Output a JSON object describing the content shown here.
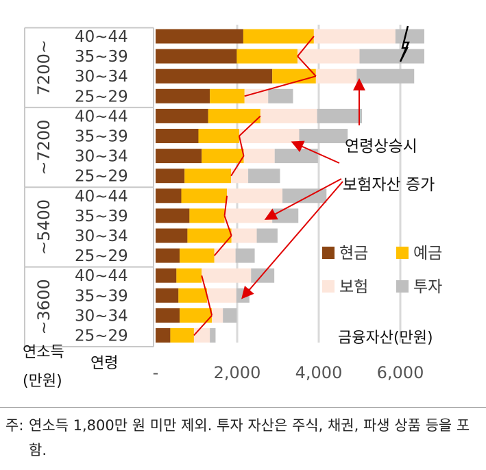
{
  "chart_data": {
    "type": "bar",
    "stacked": true,
    "orientation": "horizontal",
    "x_tick_labels": [
      "-",
      "2,000",
      "4,000",
      "6,000"
    ],
    "x_ticks": [
      0,
      2000,
      4000,
      6000
    ],
    "xlim": [
      0,
      6800
    ],
    "xlabel": "금융자산(만원)",
    "ylabel": "연령",
    "group_axis_label": "연소득\n(만원)",
    "grid": true,
    "legend_position": "lower-right",
    "groups": [
      {
        "label": "7200~",
        "ages": [
          "40~44",
          "35~39",
          "30~34",
          "25~29"
        ]
      },
      {
        "label": "~7200",
        "ages": [
          "40~44",
          "35~39",
          "30~34",
          "25~29"
        ]
      },
      {
        "label": "~5400",
        "ages": [
          "40~44",
          "35~39",
          "30~34",
          "25~29"
        ]
      },
      {
        "label": "~3600",
        "ages": [
          "40~44",
          "35~39",
          "30~34",
          "25~29"
        ]
      }
    ],
    "series": [
      {
        "name": "현금",
        "color": "#8b4513",
        "values": [
          2150,
          1990,
          2860,
          1330,
          1290,
          1050,
          1130,
          710,
          630,
          830,
          780,
          590,
          510,
          560,
          590,
          360
        ]
      },
      {
        "name": "예금",
        "color": "#ffc000",
        "values": [
          1730,
          1490,
          1070,
          850,
          1280,
          1000,
          1030,
          1140,
          1120,
          860,
          1080,
          850,
          620,
          700,
          790,
          580
        ]
      },
      {
        "name": "보험",
        "color": "#fde6db",
        "values": [
          2000,
          1520,
          1000,
          580,
          1390,
          1470,
          760,
          420,
          1360,
          1170,
          620,
          520,
          1210,
          720,
          270,
          390
        ]
      },
      {
        "name": "투자",
        "color": "#bfbfbf",
        "values": [
          800,
          1650,
          1410,
          610,
          1100,
          1190,
          1060,
          780,
          1080,
          640,
          510,
          470,
          570,
          320,
          340,
          140
        ]
      }
    ],
    "break_mark": true,
    "annotations": [
      {
        "text": "연령상승시"
      },
      {
        "text": "보험자산 증가"
      }
    ]
  },
  "footnote": {
    "prefix": "주:",
    "text": "연소득 1,800만 원 미만 제외. 투자 자산은 주식, 채권, 파생 상품 등을 포함."
  }
}
